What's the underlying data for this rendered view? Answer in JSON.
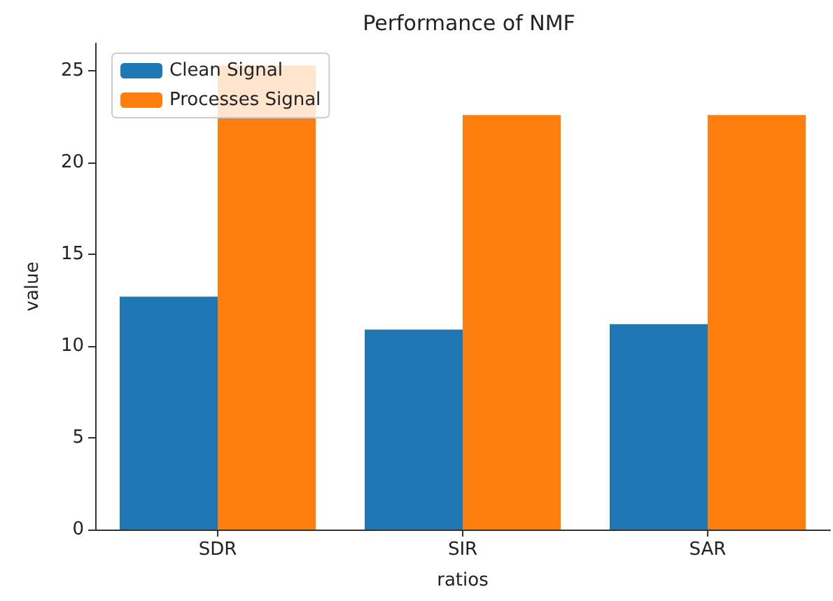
{
  "chart_data": {
    "type": "bar",
    "title": "Performance of NMF",
    "xlabel": "ratios",
    "ylabel": "value",
    "categories": [
      "SDR",
      "SIR",
      "SAR"
    ],
    "series": [
      {
        "name": "Clean Signal",
        "color": "#1f77b4",
        "values": [
          12.7,
          10.9,
          11.2
        ]
      },
      {
        "name": "Processes Signal",
        "color": "#ff7f0e",
        "values": [
          25.3,
          22.6,
          22.6
        ]
      }
    ],
    "ylim": [
      0,
      26.5
    ],
    "yticks": [
      0,
      5,
      10,
      15,
      20,
      25
    ],
    "legend": "top left",
    "grid": false
  }
}
